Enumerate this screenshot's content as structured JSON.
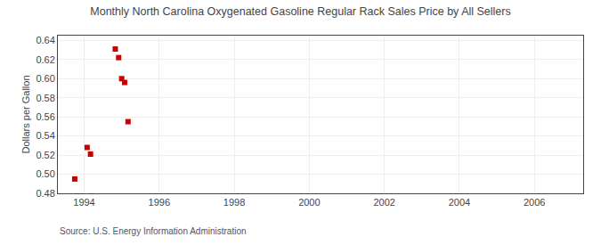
{
  "chart_data": {
    "type": "scatter",
    "title": "Monthly North Carolina Oxygenated Gasoline Regular Rack Sales Price by All Sellers",
    "ylabel": "Dollars per Gallon",
    "annotations": [
      "Source: U.S. Energy Information Administration"
    ],
    "x": [
      1993.75,
      1994.08,
      1994.17,
      1994.83,
      1994.92,
      1995.0,
      1995.08,
      1995.17
    ],
    "values": [
      0.495,
      0.528,
      0.521,
      0.631,
      0.622,
      0.6,
      0.596,
      0.555
    ],
    "color": "#cc0000",
    "marker": "square",
    "xlim": [
      1993.3,
      2007.3
    ],
    "ylim": [
      0.48,
      0.645
    ],
    "xticks": [
      1994,
      1996,
      1998,
      2000,
      2002,
      2004,
      2006
    ],
    "yticks": [
      0.48,
      {
        "value": 0.5,
        "label": "0.50"
      },
      0.52,
      0.54,
      0.56,
      0.58,
      {
        "value": 0.6,
        "label": "0.60"
      },
      0.62,
      0.64
    ],
    "grid": true
  }
}
